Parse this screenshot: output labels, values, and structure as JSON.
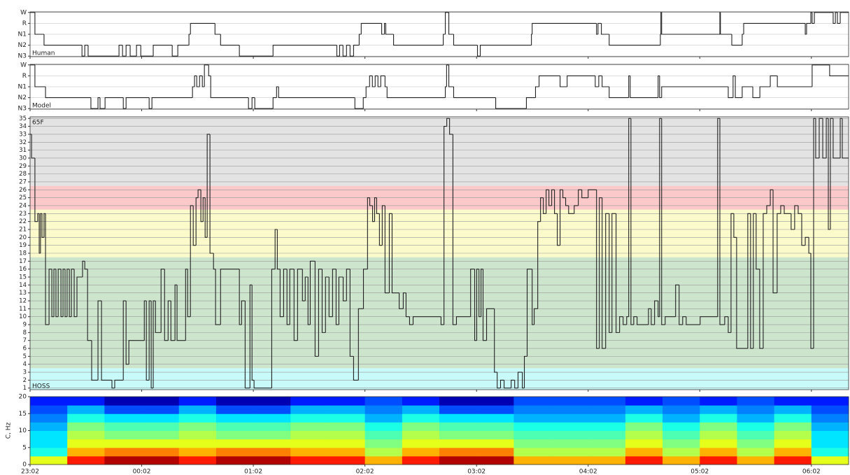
{
  "chart_data": [
    {
      "type": "step",
      "xlim": [
        0,
        440
      ],
      "ylim": [
        -0.05,
        4.05
      ],
      "yticks": [
        {
          "value": 4,
          "label": "W"
        },
        {
          "value": 3,
          "label": "R"
        },
        {
          "value": 2,
          "label": "N1"
        },
        {
          "value": 1,
          "label": "N2"
        },
        {
          "value": 0,
          "label": "N3"
        }
      ],
      "grid": true,
      "color": "#222222",
      "annotations": [
        {
          "text": "Human",
          "position": "bottom-left"
        }
      ],
      "x": [
        0,
        2.6,
        7.5,
        27.9,
        29.4,
        31.2,
        47.8,
        49.7,
        51.6,
        53.8,
        57.2,
        59.5,
        66.2,
        76.4,
        79.4,
        85.4,
        86.2,
        99.4,
        102.4,
        112.5,
        130.6,
        164.9,
        166.4,
        168.2,
        170.1,
        172.0,
        173.9,
        176.9,
        178.0,
        189.0,
        190.5,
        191.2,
        195.4,
        222.1,
        223.2,
        225.1,
        227.7,
        240.5,
        242.0,
        269.5,
        269.9,
        304.5,
        305.3,
        307.1,
        311.3,
        338.8,
        339.1,
        339.5,
        370.4,
        370.8,
        371.1,
        377.2,
        382.8,
        383.6,
        416.7,
        417.4,
        419.7,
        420.4,
        421.6,
        431.7,
        432.9,
        434.0,
        435.5
      ],
      "values": [
        4,
        2,
        1,
        0,
        1,
        0,
        1,
        0,
        1,
        0,
        1,
        0,
        1,
        0,
        1,
        2,
        3,
        2,
        1,
        0,
        1,
        0,
        1,
        0,
        1,
        0,
        1,
        2,
        3,
        2,
        3,
        2,
        1,
        2,
        4,
        2,
        1,
        0,
        1,
        2,
        3,
        2,
        3,
        2,
        1,
        2,
        4,
        2,
        2,
        4,
        2,
        1,
        2,
        3,
        2,
        3,
        4,
        3,
        4,
        3,
        4,
        3,
        4
      ]
    },
    {
      "type": "step",
      "xlim": [
        0,
        440
      ],
      "ylim": [
        -0.05,
        4.05
      ],
      "yticks": [
        {
          "value": 4,
          "label": "W"
        },
        {
          "value": 3,
          "label": "R"
        },
        {
          "value": 2,
          "label": "N1"
        },
        {
          "value": 1,
          "label": "N2"
        },
        {
          "value": 0,
          "label": "N3"
        }
      ],
      "grid": true,
      "color": "#222222",
      "annotations": [
        {
          "text": "Model",
          "position": "bottom-left"
        }
      ],
      "x": [
        0,
        2.6,
        8.3,
        32.7,
        36.5,
        37.6,
        40.3,
        50.1,
        51.6,
        64.0,
        65.5,
        87.3,
        88.4,
        89.6,
        91.1,
        92.6,
        93.7,
        96.0,
        97.1,
        117.4,
        119.3,
        120.8,
        130.6,
        132.5,
        133.6,
        174.6,
        179.1,
        180.6,
        182.5,
        184.0,
        185.5,
        187.0,
        188.5,
        190.8,
        191.9,
        223.2,
        223.9,
        225.1,
        227.7,
        250.3,
        266.8,
        271.7,
        273.6,
        284.9,
        288.7,
        303.8,
        305.7,
        307.5,
        311.3,
        321.8,
        322.6,
        337.6,
        338.4,
        339.5,
        375.3,
        377.9,
        379.1,
        382.8,
        388.5,
        392.3,
        397.9,
        401.7,
        420.4,
        429.8
      ],
      "values": [
        4,
        2,
        1,
        0,
        1,
        0,
        1,
        0,
        1,
        0,
        1,
        2,
        3,
        2,
        3,
        2,
        4,
        3,
        1,
        0,
        1,
        0,
        1,
        2,
        1,
        0,
        1,
        2,
        3,
        2,
        3,
        2,
        3,
        2,
        1,
        2,
        4,
        2,
        1,
        0,
        1,
        2,
        3,
        2,
        3,
        2,
        3,
        2,
        1,
        3,
        1,
        3,
        1,
        2,
        1,
        3,
        1,
        2,
        1,
        2,
        3,
        2,
        4,
        3
      ]
    },
    {
      "type": "step",
      "xlim": [
        0,
        440
      ],
      "ylim": [
        0.8,
        35.2
      ],
      "yticks": [
        1,
        2,
        3,
        4,
        5,
        6,
        7,
        8,
        9,
        10,
        11,
        12,
        13,
        14,
        15,
        16,
        17,
        18,
        19,
        20,
        21,
        22,
        23,
        24,
        25,
        26,
        27,
        28,
        29,
        30,
        31,
        32,
        33,
        34,
        35
      ],
      "grid": true,
      "color": "#222222",
      "bands": [
        {
          "range": [
            0.8,
            3.5
          ],
          "color": "#c8fafa"
        },
        {
          "range": [
            3.5,
            17.5
          ],
          "color": "#cde4cd"
        },
        {
          "range": [
            17.5,
            23.5
          ],
          "color": "#fafacb"
        },
        {
          "range": [
            23.5,
            26.5
          ],
          "color": "#fbc9c9"
        },
        {
          "range": [
            26.5,
            35.2
          ],
          "color": "#e3e3e3"
        }
      ],
      "annotations": [
        {
          "text": "65F",
          "position": "top-left"
        },
        {
          "text": "HOSS",
          "position": "bottom-left"
        }
      ],
      "x": [
        0,
        0.8,
        2.6,
        4.1,
        4.9,
        5.6,
        6.4,
        7.5,
        8.3,
        10.2,
        11.7,
        12.8,
        13.9,
        15.1,
        16.6,
        17.7,
        18.8,
        19.9,
        21.1,
        22.2,
        23.7,
        25.2,
        28.2,
        29.4,
        30.9,
        33.1,
        36.5,
        38.4,
        44.0,
        45.5,
        50.1,
        51.6,
        53.1,
        61.4,
        62.5,
        64.0,
        65.1,
        66.2,
        67.4,
        70.4,
        72.3,
        74.2,
        75.7,
        77.9,
        79.0,
        83.6,
        84.7,
        86.2,
        87.7,
        89.2,
        90.3,
        91.8,
        93.0,
        94.1,
        95.2,
        96.7,
        98.6,
        99.7,
        102.4,
        112.5,
        113.7,
        115.6,
        118.2,
        119.3,
        120.4,
        129.9,
        131.7,
        132.9,
        134.4,
        136.3,
        138.1,
        139.6,
        141.9,
        143.8,
        146.4,
        147.9,
        149.4,
        150.6,
        153.2,
        155.1,
        157.0,
        158.8,
        160.7,
        162.6,
        164.5,
        166.0,
        168.3,
        170.1,
        172.0,
        173.9,
        176.5,
        179.2,
        181.4,
        182.6,
        184.1,
        185.2,
        186.3,
        187.8,
        189.3,
        190.8,
        193.1,
        194.6,
        198.4,
        200.6,
        202.1,
        204.0,
        205.9,
        220.9,
        222.5,
        224.0,
        225.5,
        227.3,
        229.2,
        236.8,
        239.0,
        240.1,
        241.3,
        242.4,
        243.5,
        245.4,
        249.6,
        251.1,
        252.9,
        254.8,
        258.6,
        260.5,
        262.3,
        264.6,
        265.7,
        267.2,
        269.9,
        271.0,
        272.9,
        274.4,
        275.9,
        277.4,
        278.9,
        280.4,
        281.9,
        283.4,
        284.9,
        286.4,
        287.9,
        289.5,
        292.5,
        294.7,
        296.6,
        300.0,
        304.5,
        306.0,
        307.5,
        309.4,
        311.3,
        312.8,
        315.0,
        316.9,
        318.8,
        320.7,
        321.8,
        323.0,
        324.5,
        326.3,
        332.4,
        333.9,
        335.7,
        337.6,
        338.4,
        339.5,
        341.4,
        347.0,
        348.9,
        350.8,
        352.7,
        360.2,
        369.6,
        370.8,
        373.4,
        375.3,
        376.8,
        378.3,
        379.8,
        385.8,
        387.3,
        388.8,
        390.3,
        392.2,
        394.1,
        396.0,
        397.9,
        399.4,
        401.6,
        403.5,
        405.4,
        409.1,
        411.0,
        412.9,
        414.8,
        416.7,
        418.6,
        419.7,
        421.2,
        422.3,
        424.2,
        426.1,
        428.0,
        429.1,
        430.2,
        431.7,
        435.5,
        436.6
      ],
      "values": [
        33,
        30,
        22,
        23,
        18,
        23,
        20,
        23,
        9,
        16,
        10,
        16,
        10,
        16,
        10,
        16,
        10,
        16,
        10,
        16,
        10,
        15,
        17,
        16,
        7,
        2,
        12,
        2,
        1,
        2,
        12,
        4,
        7,
        12,
        2,
        12,
        1,
        12,
        8,
        16,
        7,
        12,
        7,
        14,
        7,
        16,
        10,
        24,
        19,
        25,
        26,
        22,
        25,
        20,
        33,
        18,
        16,
        9,
        16,
        9,
        12,
        1,
        14,
        2,
        1,
        16,
        21,
        16,
        10,
        16,
        9,
        16,
        7,
        16,
        12,
        15,
        9,
        17,
        5,
        16,
        8,
        15,
        10,
        16,
        9,
        15,
        12,
        16,
        5,
        2,
        11,
        16,
        25,
        24,
        22,
        25,
        23,
        19,
        24,
        13,
        23,
        13,
        11,
        13,
        10,
        9,
        10,
        9,
        34,
        35,
        33,
        9,
        10,
        16,
        7,
        16,
        10,
        16,
        7,
        11,
        3,
        1,
        2,
        1,
        2,
        1,
        3,
        1,
        5,
        16,
        9,
        11,
        22,
        25,
        23,
        26,
        24,
        26,
        23,
        19,
        26,
        25,
        24,
        23,
        24,
        26,
        25,
        26,
        6,
        25,
        6,
        23,
        8,
        23,
        8,
        10,
        9,
        10,
        35,
        9,
        10,
        9,
        11,
        9,
        12,
        10,
        35,
        9,
        10,
        14,
        9,
        10,
        9,
        10,
        35,
        9,
        10,
        8,
        23,
        20,
        6,
        23,
        6,
        23,
        16,
        6,
        23,
        24,
        26,
        13,
        23,
        24,
        23,
        21,
        24,
        23,
        19,
        20,
        18,
        6,
        35,
        30,
        35,
        30,
        35,
        21,
        35,
        30,
        35,
        30
      ]
    },
    {
      "type": "heatmap",
      "xlim": [
        0,
        440
      ],
      "ylim": [
        0,
        20
      ],
      "yticks": [
        0,
        5,
        10,
        15,
        20
      ],
      "ylabel": "C, Hz",
      "colormap": "jet",
      "zlim": [
        0,
        1
      ],
      "xticks": [
        {
          "value": 0,
          "label": "23:02"
        },
        {
          "value": 60,
          "label": "00:02"
        },
        {
          "value": 120,
          "label": "01:02"
        },
        {
          "value": 180,
          "label": "02:02"
        },
        {
          "value": 240,
          "label": "03:02"
        },
        {
          "value": 300,
          "label": "04:02"
        },
        {
          "value": 360,
          "label": "05:02"
        },
        {
          "value": 420,
          "label": "06:02"
        }
      ],
      "x_edges": [
        0,
        20,
        40,
        60,
        80,
        100,
        120,
        140,
        160,
        180,
        200,
        220,
        240,
        260,
        280,
        300,
        320,
        340,
        360,
        380,
        400,
        420,
        440
      ],
      "y_edges": [
        0,
        2.5,
        5,
        7.5,
        10,
        12.5,
        15,
        17.5,
        20
      ],
      "z": [
        [
          0.6,
          0.85,
          0.95,
          0.95,
          0.85,
          0.95,
          0.95,
          0.85,
          0.85,
          0.7,
          0.85,
          0.95,
          0.95,
          0.7,
          0.7,
          0.7,
          0.85,
          0.7,
          0.85,
          0.7,
          0.85,
          0.6
        ],
        [
          0.4,
          0.7,
          0.75,
          0.75,
          0.7,
          0.75,
          0.75,
          0.7,
          0.7,
          0.55,
          0.7,
          0.75,
          0.75,
          0.55,
          0.55,
          0.55,
          0.7,
          0.55,
          0.7,
          0.55,
          0.7,
          0.4
        ],
        [
          0.35,
          0.6,
          0.6,
          0.6,
          0.6,
          0.6,
          0.6,
          0.6,
          0.6,
          0.5,
          0.6,
          0.6,
          0.6,
          0.5,
          0.5,
          0.5,
          0.6,
          0.5,
          0.6,
          0.5,
          0.6,
          0.35
        ],
        [
          0.35,
          0.55,
          0.5,
          0.5,
          0.55,
          0.5,
          0.5,
          0.55,
          0.55,
          0.45,
          0.55,
          0.5,
          0.5,
          0.45,
          0.45,
          0.45,
          0.55,
          0.45,
          0.55,
          0.45,
          0.55,
          0.35
        ],
        [
          0.3,
          0.5,
          0.45,
          0.45,
          0.5,
          0.45,
          0.45,
          0.5,
          0.5,
          0.4,
          0.5,
          0.45,
          0.45,
          0.4,
          0.4,
          0.4,
          0.5,
          0.4,
          0.5,
          0.4,
          0.5,
          0.3
        ],
        [
          0.25,
          0.4,
          0.35,
          0.35,
          0.4,
          0.35,
          0.35,
          0.4,
          0.4,
          0.3,
          0.4,
          0.35,
          0.35,
          0.3,
          0.3,
          0.3,
          0.4,
          0.3,
          0.4,
          0.3,
          0.4,
          0.25
        ],
        [
          0.2,
          0.3,
          0.2,
          0.2,
          0.3,
          0.2,
          0.2,
          0.3,
          0.3,
          0.25,
          0.3,
          0.2,
          0.2,
          0.25,
          0.25,
          0.25,
          0.3,
          0.25,
          0.3,
          0.25,
          0.3,
          0.2
        ],
        [
          0.15,
          0.15,
          0.05,
          0.05,
          0.15,
          0.05,
          0.05,
          0.15,
          0.15,
          0.2,
          0.15,
          0.05,
          0.05,
          0.2,
          0.2,
          0.2,
          0.15,
          0.2,
          0.15,
          0.2,
          0.15,
          0.15
        ]
      ]
    }
  ]
}
